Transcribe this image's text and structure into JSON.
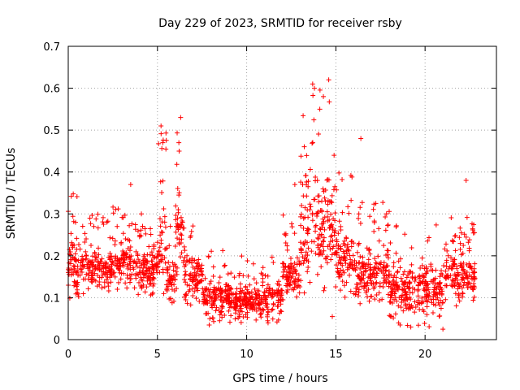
{
  "chart_data": {
    "type": "scatter",
    "title": "Day 229 of 2023, SRMTID for receiver rsby",
    "xlabel": "GPS time / hours",
    "ylabel": "SRMTID / TECUs",
    "xlim": [
      0,
      24
    ],
    "ylim": [
      0,
      0.7
    ],
    "x_ticks": [
      0,
      5,
      10,
      15,
      20
    ],
    "y_ticks": [
      0,
      0.1,
      0.2,
      0.3,
      0.4,
      0.5,
      0.6,
      0.7
    ],
    "x_tick_labels": [
      "0",
      "5",
      "10",
      "15",
      "20"
    ],
    "y_tick_labels": [
      "0",
      "0.1",
      "0.2",
      "0.3",
      "0.4",
      "0.5",
      "0.6",
      "0.7"
    ],
    "grid": true,
    "marker": "+",
    "marker_color": "#ff0000",
    "points_note": "Dense scatter of ~2000 points; values approximated by a piecewise band (low-high) per time window plus notable outliers.",
    "bands": [
      {
        "x": [
          0.0,
          1.0
        ],
        "low": 0.08,
        "high": 0.35
      },
      {
        "x": [
          1.0,
          2.5
        ],
        "low": 0.1,
        "high": 0.3
      },
      {
        "x": [
          2.5,
          3.5
        ],
        "low": 0.12,
        "high": 0.33
      },
      {
        "x": [
          3.5,
          5.0
        ],
        "low": 0.1,
        "high": 0.3
      },
      {
        "x": [
          5.0,
          5.5
        ],
        "low": 0.07,
        "high": 0.5
      },
      {
        "x": [
          5.5,
          6.0
        ],
        "low": 0.07,
        "high": 0.28
      },
      {
        "x": [
          6.0,
          6.5
        ],
        "low": 0.1,
        "high": 0.53
      },
      {
        "x": [
          6.5,
          7.5
        ],
        "low": 0.08,
        "high": 0.28
      },
      {
        "x": [
          7.5,
          9.0
        ],
        "low": 0.04,
        "high": 0.22
      },
      {
        "x": [
          9.0,
          12.0
        ],
        "low": 0.04,
        "high": 0.2
      },
      {
        "x": [
          12.0,
          13.0
        ],
        "low": 0.08,
        "high": 0.3
      },
      {
        "x": [
          13.0,
          15.0
        ],
        "low": 0.1,
        "high": 0.6
      },
      {
        "x": [
          15.0,
          16.0
        ],
        "low": 0.1,
        "high": 0.4
      },
      {
        "x": [
          16.0,
          18.0
        ],
        "low": 0.07,
        "high": 0.33
      },
      {
        "x": [
          18.0,
          21.0
        ],
        "low": 0.03,
        "high": 0.28
      },
      {
        "x": [
          21.0,
          22.8
        ],
        "low": 0.08,
        "high": 0.3
      }
    ],
    "outliers": [
      {
        "x": 14.6,
        "y": 0.62
      },
      {
        "x": 13.7,
        "y": 0.61
      },
      {
        "x": 13.8,
        "y": 0.6
      },
      {
        "x": 14.3,
        "y": 0.58
      },
      {
        "x": 14.1,
        "y": 0.55
      },
      {
        "x": 6.3,
        "y": 0.53
      },
      {
        "x": 5.2,
        "y": 0.51
      },
      {
        "x": 16.4,
        "y": 0.48
      },
      {
        "x": 5.3,
        "y": 0.47
      },
      {
        "x": 6.2,
        "y": 0.47
      },
      {
        "x": 14.9,
        "y": 0.44
      },
      {
        "x": 22.3,
        "y": 0.38
      },
      {
        "x": 3.5,
        "y": 0.37
      },
      {
        "x": 12.7,
        "y": 0.37
      },
      {
        "x": 4.1,
        "y": 0.3
      },
      {
        "x": 7.9,
        "y": 0.035
      },
      {
        "x": 18.6,
        "y": 0.035
      },
      {
        "x": 19.2,
        "y": 0.03
      },
      {
        "x": 21.0,
        "y": 0.025
      },
      {
        "x": 14.8,
        "y": 0.055
      },
      {
        "x": 11.2,
        "y": 0.04
      }
    ]
  }
}
